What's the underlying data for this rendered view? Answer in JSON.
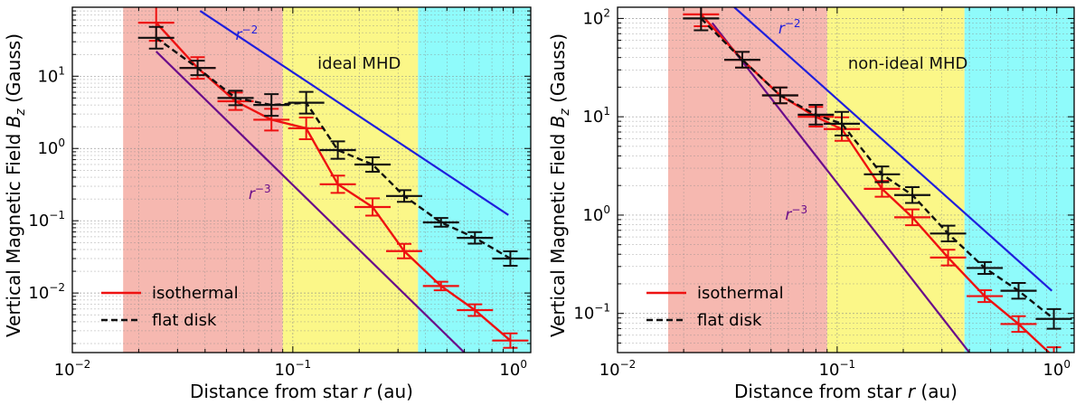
{
  "chart_data": [
    {
      "type": "line",
      "xscale": "log",
      "yscale": "log",
      "xlim": [
        0.01,
        1.2
      ],
      "ylim": [
        0.0015,
        90
      ],
      "xlabel": "Distance from star r (au)",
      "xlabel_text": "Distance from star ",
      "xlabel_var": "r",
      "xlabel_unit": " (au)",
      "ylabel_text": "Vertical Magnetic Field ",
      "ylabel_var": "B",
      "ylabel_sub": "z",
      "ylabel_unit": " (Gauss)",
      "x_tick_labels": [
        {
          "v": 0.01,
          "b": "10",
          "e": "−2"
        },
        {
          "v": 0.1,
          "b": "10",
          "e": "−1"
        },
        {
          "v": 1,
          "b": "10",
          "e": "0"
        }
      ],
      "y_tick_labels": [
        {
          "v": 0.01,
          "b": "10",
          "e": "−2"
        },
        {
          "v": 0.1,
          "b": "10",
          "e": "−1"
        },
        {
          "v": 1,
          "b": "10",
          "e": "0"
        },
        {
          "v": 10,
          "b": "10",
          "e": "1"
        }
      ],
      "region_label": "ideal MHD",
      "regions": [
        {
          "from": 0.017,
          "to": 0.09,
          "color": "#f6b8b0"
        },
        {
          "from": 0.09,
          "to": 0.37,
          "color": "#fbf788"
        },
        {
          "from": 0.37,
          "to": 1.2,
          "color": "#8ffbfb"
        }
      ],
      "series": [
        {
          "name": "isothermal",
          "color": "#ee1111",
          "dash": false,
          "x": [
            0.024,
            0.037,
            0.055,
            0.08,
            0.115,
            0.16,
            0.23,
            0.32,
            0.47,
            0.67,
            0.97
          ],
          "y": [
            55,
            13,
            4.5,
            2.5,
            1.9,
            0.32,
            0.155,
            0.038,
            0.0125,
            0.0058,
            0.0022
          ],
          "err": [
            0.25,
            0.15,
            0.12,
            0.15,
            0.15,
            0.12,
            0.12,
            0.1,
            0.06,
            0.08,
            0.1
          ]
        },
        {
          "name": "flat disk",
          "color": "#111111",
          "dash": true,
          "x": [
            0.024,
            0.037,
            0.055,
            0.08,
            0.115,
            0.16,
            0.23,
            0.32,
            0.47,
            0.67,
            0.97
          ],
          "y": [
            34,
            13,
            5.0,
            4.0,
            4.3,
            0.95,
            0.6,
            0.22,
            0.095,
            0.058,
            0.03
          ],
          "err": [
            0.15,
            0.1,
            0.1,
            0.15,
            0.15,
            0.12,
            0.1,
            0.08,
            0.06,
            0.08,
            0.1
          ]
        }
      ],
      "reference_lines": [
        {
          "label": "r",
          "exp": "−2",
          "color": "#1f1fdd",
          "x1": 0.038,
          "y1": 80,
          "x2": 0.95,
          "y2": 0.12,
          "label_x": 0.055,
          "label_y": 32
        },
        {
          "label": "r",
          "exp": "−3",
          "color": "#6a0d8a",
          "x1": 0.024,
          "y1": 22,
          "x2": 0.6,
          "y2": 0.0015,
          "label_x": 0.063,
          "label_y": 0.2
        }
      ],
      "legend": {
        "position": "bottom-left",
        "entries": [
          "isothermal",
          "flat disk"
        ]
      }
    },
    {
      "type": "line",
      "xscale": "log",
      "yscale": "log",
      "xlim": [
        0.01,
        1.2
      ],
      "ylim": [
        0.04,
        130
      ],
      "xlabel": "Distance from star r (au)",
      "xlabel_text": "Distance from star ",
      "xlabel_var": "r",
      "xlabel_unit": " (au)",
      "ylabel_text": "Vertical Magnetic Field ",
      "ylabel_var": "B",
      "ylabel_sub": "z",
      "ylabel_unit": " (Gauss)",
      "x_tick_labels": [
        {
          "v": 0.01,
          "b": "10",
          "e": "−2"
        },
        {
          "v": 0.1,
          "b": "10",
          "e": "−1"
        },
        {
          "v": 1,
          "b": "10",
          "e": "0"
        }
      ],
      "y_tick_labels": [
        {
          "v": 0.1,
          "b": "10",
          "e": "−1"
        },
        {
          "v": 1,
          "b": "10",
          "e": "0"
        },
        {
          "v": 10,
          "b": "10",
          "e": "1"
        },
        {
          "v": 100,
          "b": "10",
          "e": "2"
        }
      ],
      "region_label": "non-ideal MHD",
      "regions": [
        {
          "from": 0.017,
          "to": 0.09,
          "color": "#f6b8b0"
        },
        {
          "from": 0.09,
          "to": 0.38,
          "color": "#fbf788"
        },
        {
          "from": 0.38,
          "to": 1.2,
          "color": "#8ffbfb"
        }
      ],
      "series": [
        {
          "name": "isothermal",
          "color": "#ee1111",
          "dash": false,
          "x": [
            0.024,
            0.037,
            0.055,
            0.08,
            0.105,
            0.16,
            0.22,
            0.32,
            0.47,
            0.67,
            0.97
          ],
          "y": [
            110,
            38,
            16.5,
            10,
            7.5,
            1.85,
            0.95,
            0.37,
            0.15,
            0.078,
            0.036
          ],
          "err": [
            0.12,
            0.08,
            0.08,
            0.1,
            0.12,
            0.08,
            0.08,
            0.08,
            0.06,
            0.08,
            0.1
          ]
        },
        {
          "name": "flat disk",
          "color": "#111111",
          "dash": true,
          "x": [
            0.024,
            0.037,
            0.055,
            0.08,
            0.105,
            0.16,
            0.22,
            0.32,
            0.47,
            0.67,
            0.97
          ],
          "y": [
            100,
            38,
            16.5,
            10.5,
            8.5,
            2.6,
            1.6,
            0.65,
            0.29,
            0.17,
            0.088
          ],
          "err": [
            0.12,
            0.08,
            0.08,
            0.1,
            0.12,
            0.08,
            0.08,
            0.08,
            0.06,
            0.08,
            0.1
          ]
        }
      ],
      "reference_lines": [
        {
          "label": "r",
          "exp": "−2",
          "color": "#1f1fdd",
          "x1": 0.034,
          "y1": 130,
          "x2": 0.95,
          "y2": 0.17,
          "label_x": 0.054,
          "label_y": 70
        },
        {
          "label": "r",
          "exp": "−3",
          "color": "#6a0d8a",
          "x1": 0.027,
          "y1": 90,
          "x2": 0.4,
          "y2": 0.04,
          "label_x": 0.058,
          "label_y": 0.9
        }
      ],
      "legend": {
        "position": "bottom-left",
        "entries": [
          "isothermal",
          "flat disk"
        ]
      }
    }
  ]
}
